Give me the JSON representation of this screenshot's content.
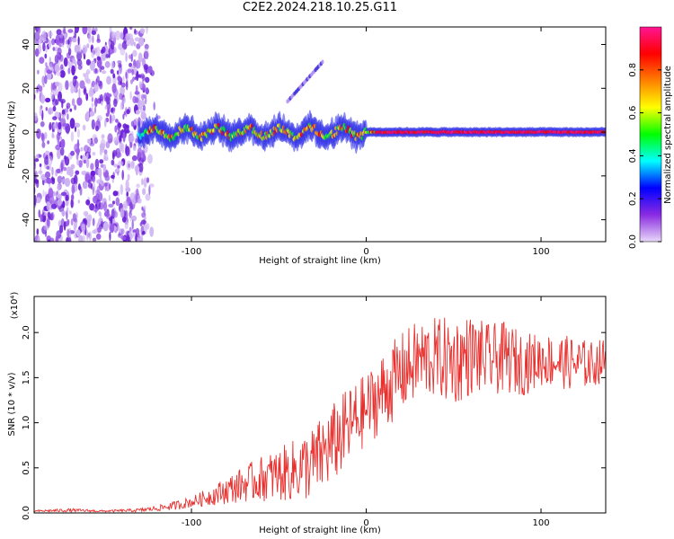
{
  "title": "C2E2.2024.218.10.25.G11",
  "chart_data": [
    {
      "type": "heatmap",
      "xlabel": "Height of straight line (km)",
      "ylabel": "Frequency (Hz)",
      "xlim": [
        -190,
        137
      ],
      "ylim": [
        -50,
        48
      ],
      "xticks": [
        -100,
        0,
        100
      ],
      "yticks": [
        -40,
        -20,
        0,
        20,
        40
      ],
      "colorbar": {
        "label": "Normalized spectral amplitude",
        "range": [
          0,
          1
        ],
        "ticks": [
          "0.0",
          "0.2",
          "0.4",
          "0.6",
          "0.8"
        ],
        "colormap": [
          "#e8d8f8",
          "#8a2be2",
          "#0000ff",
          "#00ffff",
          "#00ff00",
          "#ffff00",
          "#ff8000",
          "#ff0000",
          "#ff1493"
        ]
      },
      "features": {
        "noise_region_x": [
          -190,
          -125
        ],
        "signal_line_x": [
          -130,
          137
        ],
        "signal_frequency_hz": 0,
        "harmonic_segment": {
          "x": [
            -45,
            -25
          ],
          "frequency_hz": [
            14,
            32
          ]
        }
      }
    },
    {
      "type": "line",
      "xlabel": "Height of straight line (km)",
      "ylabel": "SNR (10 * v/v)",
      "y_multiplier": "(x10⁴)",
      "xlim": [
        -190,
        137
      ],
      "ylim": [
        0,
        2.4
      ],
      "xticks": [
        -100,
        0,
        100
      ],
      "yticks": [
        0.0,
        0.5,
        1.0,
        1.5,
        2.0
      ],
      "color": "#e8312f",
      "series": [
        {
          "x": [
            -190,
            -170,
            -150,
            -130,
            -120,
            -110,
            -100,
            -90,
            -80,
            -70,
            -60,
            -50,
            -40,
            -30,
            -20,
            -10,
            0,
            10,
            20,
            30,
            40,
            50,
            60,
            70,
            80,
            90,
            100,
            110,
            120,
            130,
            137
          ],
          "values": [
            0.02,
            0.03,
            0.02,
            0.03,
            0.05,
            0.08,
            0.12,
            0.18,
            0.25,
            0.32,
            0.38,
            0.42,
            0.48,
            0.55,
            0.75,
            0.95,
            1.15,
            1.35,
            1.55,
            1.7,
            1.72,
            1.68,
            1.75,
            1.7,
            1.72,
            1.65,
            1.7,
            1.68,
            1.65,
            1.65,
            1.7
          ],
          "amplitude": [
            0.01,
            0.02,
            0.01,
            0.02,
            0.03,
            0.05,
            0.06,
            0.1,
            0.15,
            0.2,
            0.25,
            0.3,
            0.35,
            0.42,
            0.45,
            0.45,
            0.4,
            0.45,
            0.45,
            0.45,
            0.45,
            0.5,
            0.45,
            0.4,
            0.4,
            0.35,
            0.3,
            0.3,
            0.3,
            0.25,
            0.25
          ]
        }
      ]
    }
  ]
}
